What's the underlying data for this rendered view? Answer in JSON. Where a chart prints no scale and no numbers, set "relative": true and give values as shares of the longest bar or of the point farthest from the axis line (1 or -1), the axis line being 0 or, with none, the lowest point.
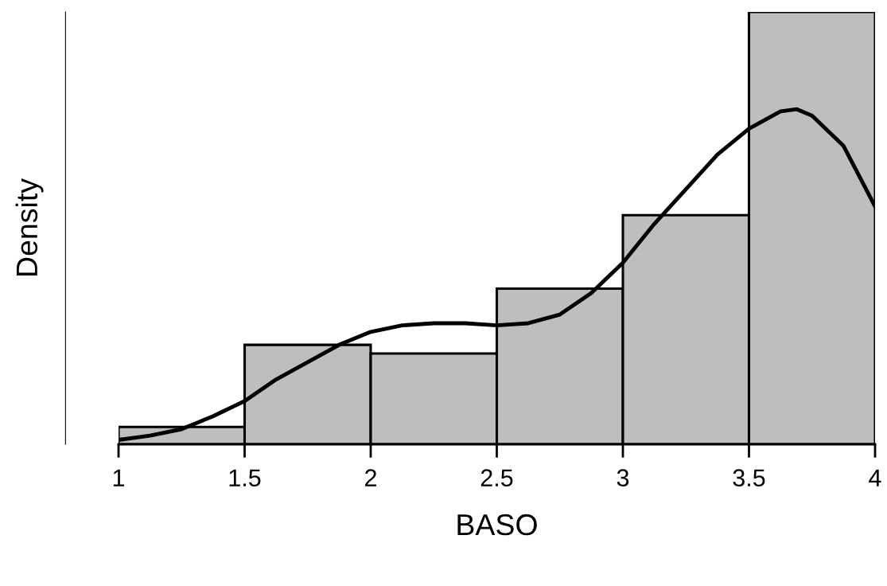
{
  "chart_data": {
    "type": "histogram",
    "relative": true,
    "xlabel": "BASO",
    "ylabel": "Density",
    "bins": [
      1,
      1.5,
      2,
      2.5,
      3,
      3.5,
      4
    ],
    "values": [
      0.04,
      0.23,
      0.21,
      0.36,
      0.53,
      1
    ],
    "color": "#bebebe",
    "xlim": [
      1,
      4
    ],
    "xticks": [
      1,
      1.5,
      2,
      2.5,
      3,
      3.5,
      4
    ],
    "tick_labels": "x",
    "series": [
      {
        "type": "line",
        "color": "#000000",
        "x": [
          1,
          1.125,
          1.25,
          1.375,
          1.5,
          1.625,
          1.75,
          1.875,
          2,
          2.125,
          2.25,
          2.375,
          2.5,
          2.625,
          2.75,
          2.875,
          3,
          3.125,
          3.25,
          3.375,
          3.5,
          3.625,
          3.69,
          3.75,
          3.875,
          4
        ],
        "values": [
          0.01,
          0.02,
          0.035,
          0.065,
          0.1,
          0.15,
          0.19,
          0.23,
          0.26,
          0.275,
          0.28,
          0.28,
          0.275,
          0.28,
          0.3,
          0.35,
          0.42,
          0.51,
          0.59,
          0.67,
          0.73,
          0.77,
          0.775,
          0.76,
          0.69,
          0.55
        ]
      }
    ]
  }
}
